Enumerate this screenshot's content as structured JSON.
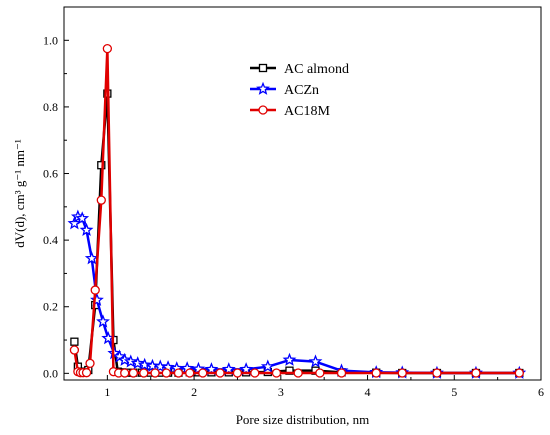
{
  "chart_data": {
    "type": "line",
    "title": "",
    "xlabel": "Pore size distribution, nm",
    "ylabel": "dV(d), cm³ g⁻¹ nm⁻¹",
    "xlim": [
      0.5,
      6
    ],
    "ylim": [
      -0.02,
      1.1
    ],
    "xticks": [
      1,
      2,
      3,
      4,
      5,
      6
    ],
    "xtick_labels": [
      "1",
      "2",
      "3",
      "4",
      "5",
      "6"
    ],
    "yticks": [
      0.0,
      0.2,
      0.4,
      0.6,
      0.8,
      1.0
    ],
    "ytick_labels": [
      "0.0",
      "0.2",
      "0.4",
      "0.6",
      "0.8",
      "1.0"
    ],
    "grid": false,
    "legend_position": "top-center",
    "series": [
      {
        "name": "AC almond",
        "color": "#000000",
        "marker": "square",
        "x": [
          0.62,
          0.66,
          0.7,
          0.74,
          0.78,
          0.86,
          0.93,
          1.0,
          1.07,
          1.12,
          1.17,
          1.22,
          1.3,
          1.4,
          1.5,
          1.6,
          1.7,
          1.82,
          1.95,
          2.05,
          2.2,
          2.4,
          2.6,
          2.85,
          3.1,
          3.4,
          3.7,
          4.1,
          4.4,
          4.8,
          5.25,
          5.75
        ],
        "y": [
          0.095,
          0.02,
          0.005,
          0.005,
          0.01,
          0.205,
          0.625,
          0.84,
          0.1,
          0.005,
          0.003,
          0.002,
          0.002,
          0.002,
          0.002,
          0.002,
          0.002,
          0.002,
          0.003,
          0.003,
          0.003,
          0.003,
          0.003,
          0.004,
          0.008,
          0.008,
          0.003,
          0.002,
          0.001,
          0.001,
          0.001,
          0.001
        ]
      },
      {
        "name": "ACZn",
        "color": "#0000ff",
        "marker": "star",
        "x": [
          0.62,
          0.66,
          0.71,
          0.76,
          0.82,
          0.88,
          0.95,
          1.01,
          1.08,
          1.14,
          1.2,
          1.27,
          1.35,
          1.43,
          1.52,
          1.61,
          1.7,
          1.8,
          1.92,
          2.05,
          2.2,
          2.4,
          2.6,
          2.85,
          3.1,
          3.4,
          3.7,
          4.1,
          4.4,
          4.8,
          5.25,
          5.75
        ],
        "y": [
          0.45,
          0.47,
          0.465,
          0.43,
          0.345,
          0.22,
          0.155,
          0.105,
          0.06,
          0.05,
          0.04,
          0.035,
          0.03,
          0.025,
          0.022,
          0.02,
          0.018,
          0.015,
          0.015,
          0.013,
          0.012,
          0.012,
          0.012,
          0.02,
          0.04,
          0.035,
          0.008,
          0.003,
          0.002,
          0.001,
          0.001,
          0.001
        ]
      },
      {
        "name": "AC18M",
        "color": "#e00000",
        "marker": "circle",
        "x": [
          0.62,
          0.66,
          0.69,
          0.72,
          0.76,
          0.8,
          0.86,
          0.93,
          1.0,
          1.07,
          1.13,
          1.2,
          1.3,
          1.42,
          1.55,
          1.68,
          1.82,
          1.95,
          2.1,
          2.3,
          2.5,
          2.7,
          2.95,
          3.2,
          3.45,
          3.7,
          4.1,
          4.4,
          4.8,
          5.25,
          5.75
        ],
        "y": [
          0.07,
          0.005,
          0.002,
          0.002,
          0.002,
          0.03,
          0.25,
          0.52,
          0.975,
          0.005,
          0.001,
          0.001,
          0.001,
          0.001,
          0.001,
          0.001,
          0.001,
          0.001,
          0.001,
          0.001,
          0.001,
          0.001,
          0.001,
          0.001,
          0.001,
          0.001,
          0.001,
          0.001,
          0.001,
          0.001,
          0.001
        ]
      }
    ]
  }
}
